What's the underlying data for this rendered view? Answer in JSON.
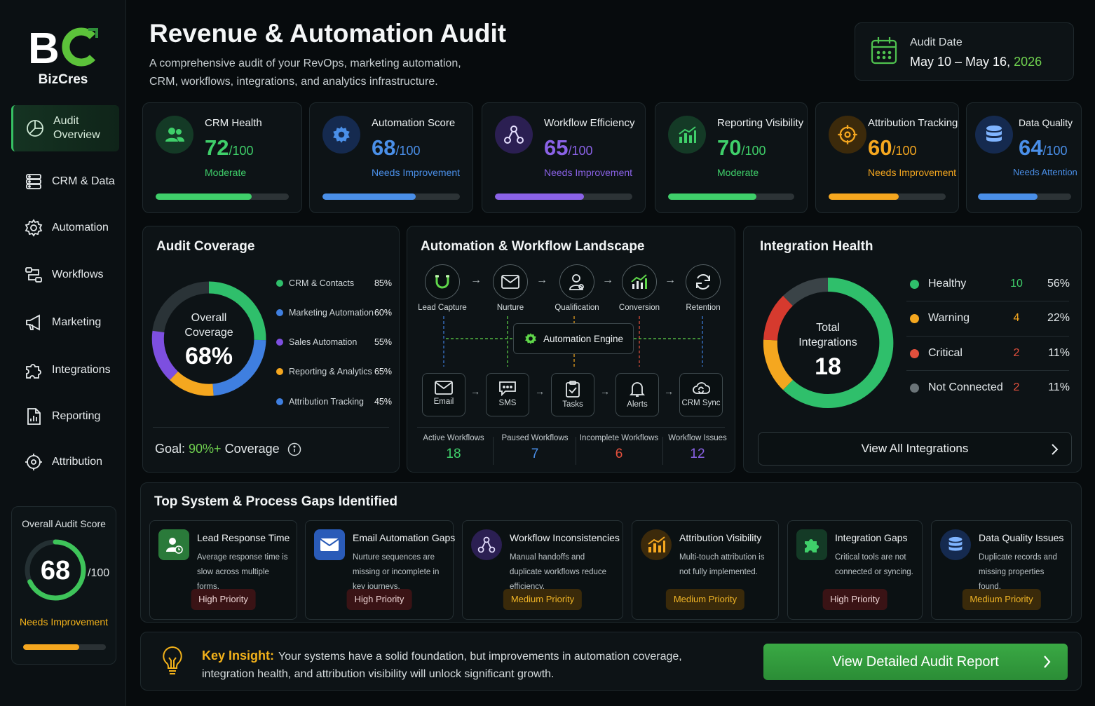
{
  "brand": {
    "name": "BizCres"
  },
  "sidebar": {
    "items": [
      {
        "label": "Audit Overview",
        "icon": "pie-chart-icon",
        "active": true
      },
      {
        "label": "CRM & Data",
        "icon": "database-icon"
      },
      {
        "label": "Automation",
        "icon": "gear-icon"
      },
      {
        "label": "Workflows",
        "icon": "workflow-icon"
      },
      {
        "label": "Marketing",
        "icon": "megaphone-icon"
      },
      {
        "label": "Integrations",
        "icon": "puzzle-icon"
      },
      {
        "label": "Reporting",
        "icon": "report-icon"
      },
      {
        "label": "Attribution",
        "icon": "target-icon"
      }
    ],
    "score": {
      "title": "Overall Audit Score",
      "value": "68",
      "denominator": "/100",
      "status": "Needs Improvement",
      "fraction": 0.68
    }
  },
  "header": {
    "title": "Revenue & Automation Audit",
    "subtitle": "A comprehensive audit of your RevOps, marketing automation, CRM, workflows, integrations, and analytics infrastructure.",
    "date_label": "Audit Date",
    "date_value": "May 10 – May 16,",
    "date_year": "2026"
  },
  "metrics": [
    {
      "label": "CRM Health",
      "value": "72",
      "den": "/100",
      "status": "Moderate",
      "color": "#3fcf6a",
      "icon_bg": "#143a26",
      "fraction": 0.72
    },
    {
      "label": "Automation Score",
      "value": "68",
      "den": "/100",
      "status": "Needs Improvement",
      "color": "#4a8fe8",
      "icon_bg": "#152a4f",
      "fraction": 0.68
    },
    {
      "label": "Workflow Efficiency",
      "value": "65",
      "den": "/100",
      "status": "Needs Improvement",
      "color": "#8a62e6",
      "icon_bg": "#2b1f52",
      "fraction": 0.65
    },
    {
      "label": "Reporting Visibility",
      "value": "70",
      "den": "/100",
      "status": "Moderate",
      "color": "#3fcf6a",
      "icon_bg": "#143a26",
      "fraction": 0.7
    },
    {
      "label": "Attribution Tracking",
      "value": "60",
      "den": "/100",
      "status": "Needs Improvement",
      "color": "#f5a71f",
      "icon_bg": "#3c2a0b",
      "fraction": 0.6
    },
    {
      "label": "Data Quality",
      "value": "64",
      "den": "/100",
      "status": "Needs Attention",
      "color": "#4a8fe8",
      "icon_bg": "#152a4f",
      "fraction": 0.64
    }
  ],
  "coverage": {
    "title": "Audit Coverage",
    "center_label": "Overall Coverage",
    "center_value": "68%",
    "goal_label": "Goal:",
    "goal_value": "90%+",
    "goal_suffix": "Coverage",
    "items": [
      {
        "label": "CRM & Contacts",
        "pct": "85%",
        "color": "#2fbf6b"
      },
      {
        "label": "Marketing Automation",
        "pct": "60%",
        "color": "#3f7fe0"
      },
      {
        "label": "Sales Automation",
        "pct": "55%",
        "color": "#7d4fe0"
      },
      {
        "label": "Reporting & Analytics",
        "pct": "65%",
        "color": "#f5a71f"
      },
      {
        "label": "Attribution Tracking",
        "pct": "45%",
        "color": "#3f7fe0"
      }
    ]
  },
  "workflow": {
    "title": "Automation & Workflow Landscape",
    "stages": [
      "Lead Capture",
      "Nurture",
      "Qualification",
      "Conversion",
      "Retention"
    ],
    "engine": "Automation Engine",
    "channels": [
      "Email",
      "SMS",
      "Tasks",
      "Alerts",
      "CRM Sync"
    ],
    "stats": [
      {
        "label": "Active Workflows",
        "value": "18",
        "color": "#3fcf6a"
      },
      {
        "label": "Paused Workflows",
        "value": "7",
        "color": "#4a8fe8"
      },
      {
        "label": "Incomplete Workflows",
        "value": "6",
        "color": "#e3503d"
      },
      {
        "label": "Workflow Issues",
        "value": "12",
        "color": "#8a62e6"
      }
    ]
  },
  "integrations": {
    "title": "Integration Health",
    "center_label": "Total Integrations",
    "total": "18",
    "rows": [
      {
        "label": "Healthy",
        "count": "10",
        "pct": "56%",
        "color": "#2fbf6b",
        "count_color": "#3fcf6a"
      },
      {
        "label": "Warning",
        "count": "4",
        "pct": "22%",
        "color": "#f5a71f",
        "count_color": "#f5a71f"
      },
      {
        "label": "Critical",
        "count": "2",
        "pct": "11%",
        "color": "#e3503d",
        "count_color": "#e3503d"
      },
      {
        "label": "Not Connected",
        "count": "2",
        "pct": "11%",
        "color": "#6b7478",
        "count_color": "#e3503d"
      }
    ],
    "view_all": "View All Integrations"
  },
  "gaps": {
    "title": "Top System & Process Gaps Identified",
    "items": [
      {
        "title": "Lead Response Time",
        "desc": "Average response time is slow across multiple forms.",
        "priority": "High Priority",
        "level": "high",
        "icon": "user-clock-icon",
        "icon_bg": "#2a7a3a"
      },
      {
        "title": "Email Automation Gaps",
        "desc": "Nurture sequences are missing or incomplete in key journeys.",
        "priority": "High Priority",
        "level": "high",
        "icon": "envelope-icon",
        "icon_bg": "#2a5bb8"
      },
      {
        "title": "Workflow Inconsistencies",
        "desc": "Manual handoffs and duplicate workflows reduce efficiency.",
        "priority": "Medium Priority",
        "level": "med",
        "icon": "workflow-icon",
        "icon_bg": "#2b1f52"
      },
      {
        "title": "Attribution Visibility",
        "desc": "Multi-touch attribution is not fully implemented.",
        "priority": "Medium Priority",
        "level": "med",
        "icon": "bar-chart-icon",
        "icon_bg": "#3c2a0b"
      },
      {
        "title": "Integration Gaps",
        "desc": "Critical tools are not connected or syncing.",
        "priority": "High Priority",
        "level": "high",
        "icon": "puzzle-icon",
        "icon_bg": "#143a26"
      },
      {
        "title": "Data Quality Issues",
        "desc": "Duplicate records and missing properties found.",
        "priority": "Medium Priority",
        "level": "med",
        "icon": "database-icon",
        "icon_bg": "#152a4f"
      }
    ]
  },
  "insight": {
    "label": "Key Insight:",
    "text": "Your systems have a solid foundation, but improvements in automation coverage, integration health, and attribution visibility will unlock significant growth.",
    "cta": "View Detailed Audit Report"
  }
}
